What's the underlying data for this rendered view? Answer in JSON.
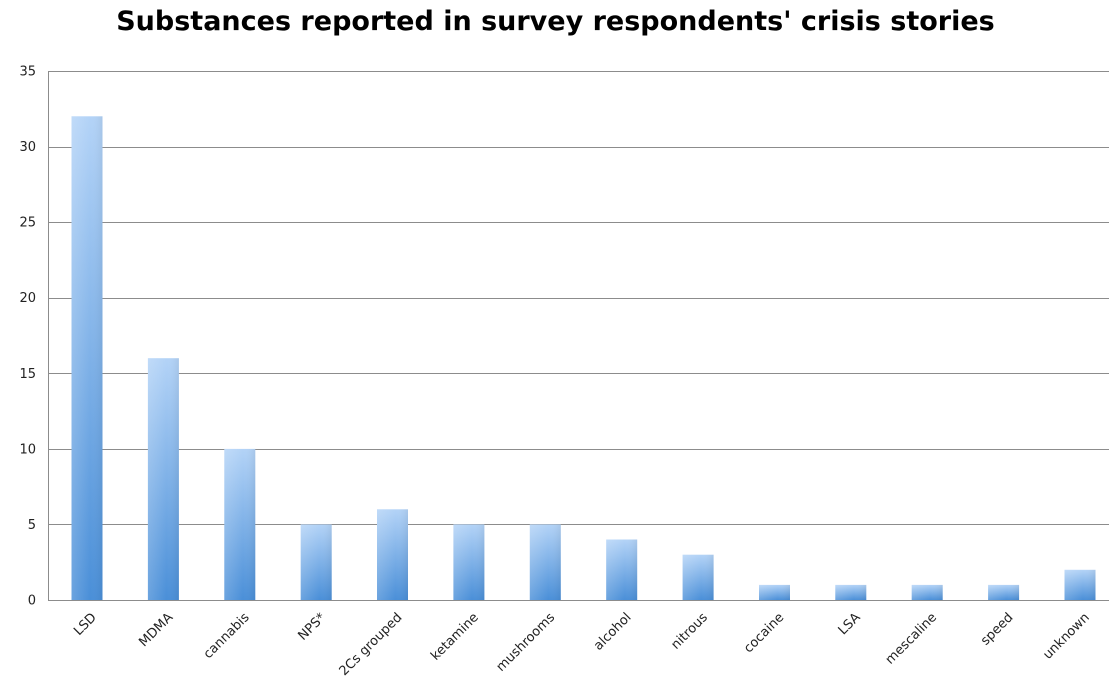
{
  "chart_data": {
    "type": "bar",
    "title": "Substances reported in survey respondents' crisis stories",
    "xlabel": "",
    "ylabel": "",
    "categories": [
      "LSD",
      "MDMA",
      "cannabis",
      "NPS*",
      "2Cs grouped",
      "ketamine",
      "mushrooms",
      "alcohol",
      "nitrous",
      "cocaine",
      "LSA",
      "mescaline",
      "speed",
      "unknown"
    ],
    "values": [
      32,
      16,
      10,
      5,
      6,
      5,
      5,
      4,
      3,
      1,
      1,
      1,
      1,
      2
    ],
    "ylim": [
      0,
      35
    ],
    "yticks": [
      0,
      5,
      10,
      15,
      20,
      25,
      30,
      35
    ],
    "grid": true,
    "legend": "none",
    "colors": {
      "bar_top": "#b3d3f7",
      "bar_bottom": "#4a8fd8",
      "gridline": "#8c8c8c",
      "axis": "#8c8c8c"
    }
  }
}
